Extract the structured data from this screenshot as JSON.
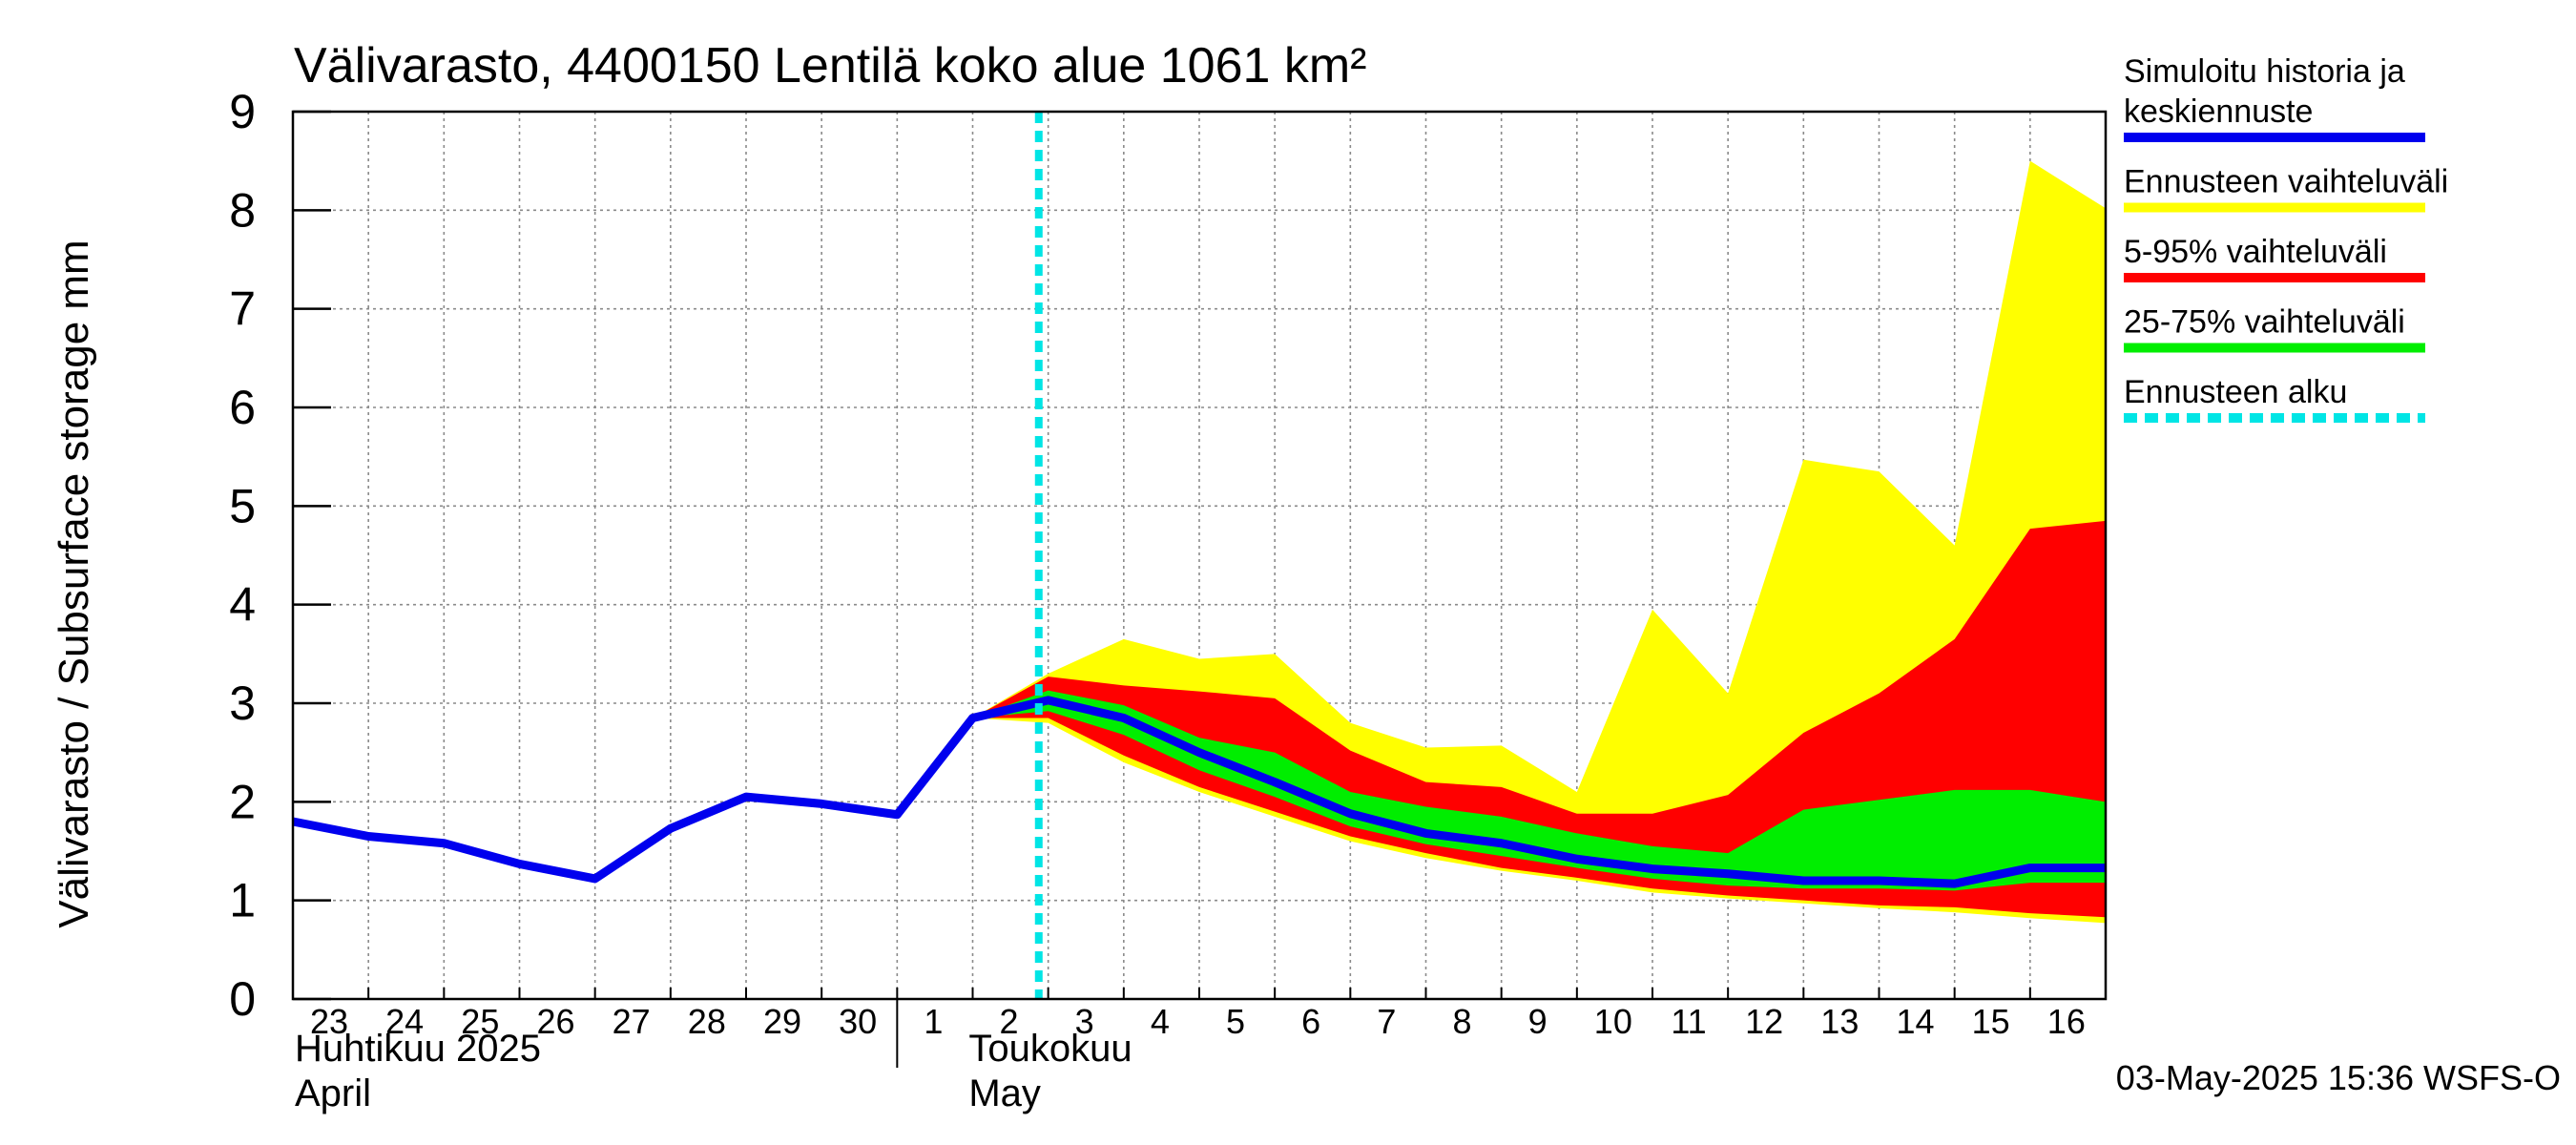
{
  "chart_data": {
    "type": "area",
    "title": "Välivarasto, 4400150 Lentilä koko alue 1061 km²",
    "ylabel": "Välivarasto / Subsurface storage  mm",
    "ylim": [
      0,
      9
    ],
    "y_ticks": [
      0,
      1,
      2,
      3,
      4,
      5,
      6,
      7,
      8,
      9
    ],
    "xlim": [
      "2025-04-23T00:00",
      "2025-05-17T00:00"
    ],
    "x_tick_labels": [
      {
        "date": "2025-04-23",
        "label": "23"
      },
      {
        "date": "2025-04-24",
        "label": "24"
      },
      {
        "date": "2025-04-25",
        "label": "25"
      },
      {
        "date": "2025-04-26",
        "label": "26"
      },
      {
        "date": "2025-04-27",
        "label": "27"
      },
      {
        "date": "2025-04-28",
        "label": "28"
      },
      {
        "date": "2025-04-29",
        "label": "29"
      },
      {
        "date": "2025-04-30",
        "label": "30"
      },
      {
        "date": "2025-05-01",
        "label": "1"
      },
      {
        "date": "2025-05-02",
        "label": "2"
      },
      {
        "date": "2025-05-03",
        "label": "3"
      },
      {
        "date": "2025-05-04",
        "label": "4"
      },
      {
        "date": "2025-05-05",
        "label": "5"
      },
      {
        "date": "2025-05-06",
        "label": "6"
      },
      {
        "date": "2025-05-07",
        "label": "7"
      },
      {
        "date": "2025-05-08",
        "label": "8"
      },
      {
        "date": "2025-05-09",
        "label": "9"
      },
      {
        "date": "2025-05-10",
        "label": "10"
      },
      {
        "date": "2025-05-11",
        "label": "11"
      },
      {
        "date": "2025-05-12",
        "label": "12"
      },
      {
        "date": "2025-05-13",
        "label": "13"
      },
      {
        "date": "2025-05-14",
        "label": "14"
      },
      {
        "date": "2025-05-15",
        "label": "15"
      },
      {
        "date": "2025-05-16",
        "label": "16"
      }
    ],
    "month_labels": [
      {
        "date": "2025-04-23",
        "fi": "Huhtikuu  2025",
        "en": "April"
      },
      {
        "date": "2025-05-01",
        "fi": "Toukokuu",
        "en": "May"
      }
    ],
    "month_separator": "2025-05-01",
    "grid": true,
    "legend_position": "right",
    "legend": [
      {
        "label": "Simuloitu historia ja keskiennuste",
        "color": "#0000ee",
        "style": "line"
      },
      {
        "label": "Ennusteen vaihteluväli",
        "color": "#ffff00",
        "style": "band"
      },
      {
        "label": "5-95% vaihteluväli",
        "color": "#ff0000",
        "style": "band"
      },
      {
        "label": "25-75% vaihteluväli",
        "color": "#00ee00",
        "style": "band"
      },
      {
        "label": "Ennusteen alku",
        "color": "#00e5e5",
        "style": "dashed"
      }
    ],
    "forecast_start": "2025-05-02T21:00",
    "series": [
      {
        "name": "Simuloitu historia ja keskiennuste",
        "color": "#0000ee",
        "x": [
          "2025-04-23",
          "2025-04-24",
          "2025-04-25",
          "2025-04-26",
          "2025-04-27",
          "2025-04-28",
          "2025-04-29",
          "2025-04-30",
          "2025-05-01",
          "2025-05-02",
          "2025-05-03",
          "2025-05-04",
          "2025-05-05",
          "2025-05-06",
          "2025-05-07",
          "2025-05-08",
          "2025-05-09",
          "2025-05-10",
          "2025-05-11",
          "2025-05-12",
          "2025-05-13",
          "2025-05-14",
          "2025-05-15",
          "2025-05-16",
          "2025-05-17"
        ],
        "y": [
          1.8,
          1.65,
          1.58,
          1.37,
          1.22,
          1.73,
          2.05,
          1.98,
          1.87,
          2.85,
          3.03,
          2.85,
          2.5,
          2.2,
          1.88,
          1.68,
          1.58,
          1.42,
          1.32,
          1.27,
          1.2,
          1.2,
          1.17,
          1.33,
          1.33
        ]
      }
    ],
    "bands": [
      {
        "name": "Ennusteen vaihteluväli",
        "color": "#ffff00",
        "x": [
          "2025-05-02",
          "2025-05-03",
          "2025-05-04",
          "2025-05-05",
          "2025-05-06",
          "2025-05-07",
          "2025-05-08",
          "2025-05-09",
          "2025-05-10",
          "2025-05-11",
          "2025-05-12",
          "2025-05-13",
          "2025-05-14",
          "2025-05-15",
          "2025-05-16",
          "2025-05-17"
        ],
        "upper": [
          2.85,
          3.3,
          3.65,
          3.45,
          3.5,
          2.8,
          2.55,
          2.57,
          2.1,
          3.95,
          3.1,
          5.47,
          5.35,
          4.6,
          8.5,
          8.02
        ],
        "lower": [
          2.85,
          2.8,
          2.4,
          2.1,
          1.85,
          1.6,
          1.43,
          1.3,
          1.2,
          1.08,
          1.02,
          0.97,
          0.92,
          0.88,
          0.82,
          0.77
        ]
      },
      {
        "name": "5-95% vaihteluväli",
        "color": "#ff0000",
        "x": [
          "2025-05-02",
          "2025-05-03",
          "2025-05-04",
          "2025-05-05",
          "2025-05-06",
          "2025-05-07",
          "2025-05-08",
          "2025-05-09",
          "2025-05-10",
          "2025-05-11",
          "2025-05-12",
          "2025-05-13",
          "2025-05-14",
          "2025-05-15",
          "2025-05-16",
          "2025-05-17"
        ],
        "upper": [
          2.85,
          3.27,
          3.18,
          3.12,
          3.05,
          2.52,
          2.2,
          2.15,
          1.88,
          1.88,
          2.07,
          2.7,
          3.1,
          3.65,
          4.77,
          4.85
        ],
        "lower": [
          2.85,
          2.85,
          2.47,
          2.15,
          1.9,
          1.65,
          1.48,
          1.33,
          1.23,
          1.12,
          1.05,
          1.0,
          0.95,
          0.93,
          0.87,
          0.83
        ]
      },
      {
        "name": "25-75% vaihteluväli",
        "color": "#00ee00",
        "x": [
          "2025-05-02",
          "2025-05-03",
          "2025-05-04",
          "2025-05-05",
          "2025-05-06",
          "2025-05-07",
          "2025-05-08",
          "2025-05-09",
          "2025-05-10",
          "2025-05-11",
          "2025-05-12",
          "2025-05-13",
          "2025-05-14",
          "2025-05-15",
          "2025-05-16",
          "2025-05-17"
        ],
        "upper": [
          2.85,
          3.13,
          2.98,
          2.65,
          2.5,
          2.1,
          1.95,
          1.85,
          1.68,
          1.55,
          1.48,
          1.92,
          2.02,
          2.12,
          2.12,
          2.0
        ],
        "lower": [
          2.85,
          2.92,
          2.68,
          2.32,
          2.05,
          1.75,
          1.57,
          1.45,
          1.33,
          1.22,
          1.15,
          1.12,
          1.12,
          1.1,
          1.18,
          1.18
        ]
      }
    ]
  },
  "footer": {
    "timestamp": "03-May-2025 15:36 WSFS-O"
  }
}
